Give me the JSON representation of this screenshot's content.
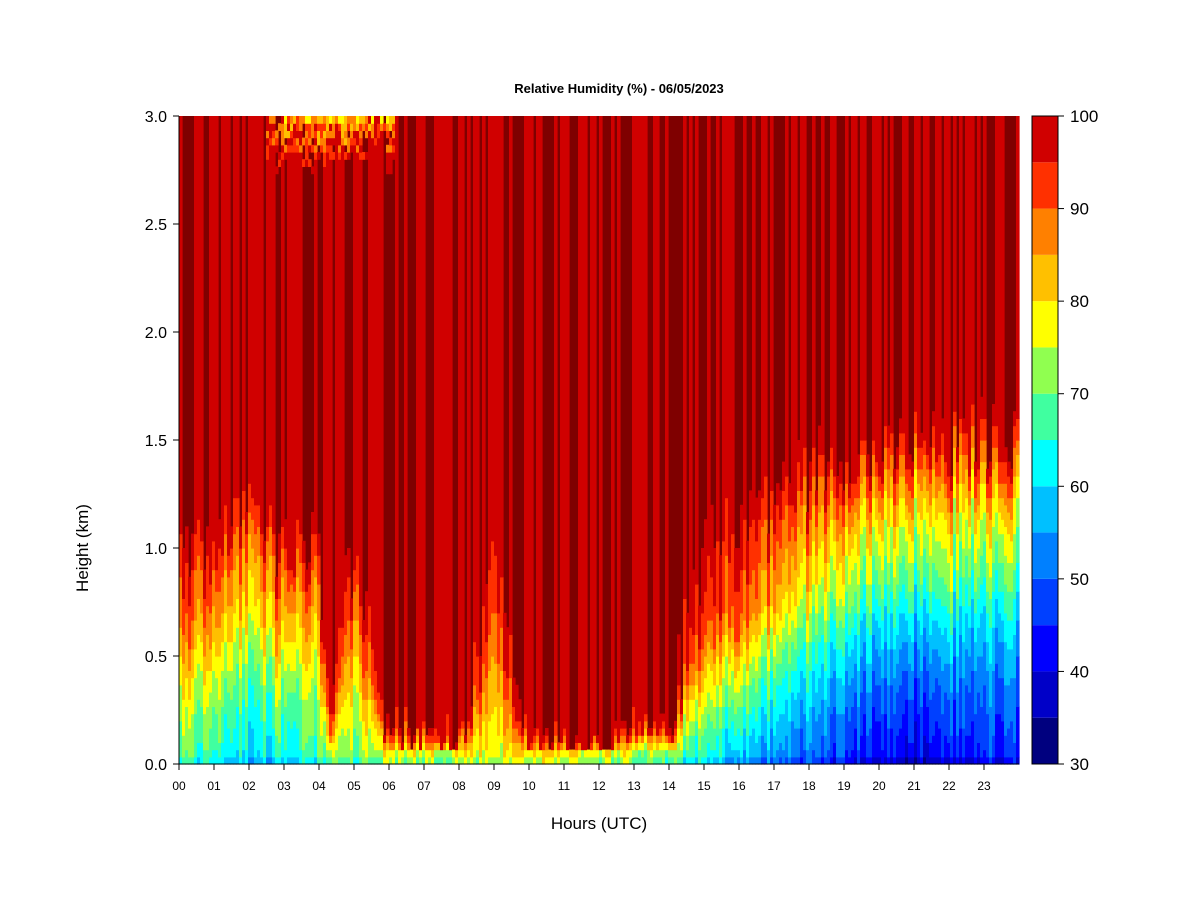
{
  "chart_data": {
    "type": "heatmap",
    "title": "Relative Humidity (%) - 06/05/2023",
    "xlabel": "Hours (UTC)",
    "ylabel": "Height (km)",
    "xlim": [
      0,
      24
    ],
    "ylim": [
      0,
      3
    ],
    "x_ticks": [
      "00",
      "01",
      "02",
      "03",
      "04",
      "05",
      "06",
      "07",
      "08",
      "09",
      "10",
      "11",
      "12",
      "13",
      "14",
      "15",
      "16",
      "17",
      "18",
      "19",
      "20",
      "21",
      "22",
      "23"
    ],
    "y_ticks": [
      "0.0",
      "0.5",
      "1.0",
      "1.5",
      "2.0",
      "2.5",
      "3.0"
    ],
    "y_tick_values": [
      0,
      0.5,
      1.0,
      1.5,
      2.0,
      2.5,
      3.0
    ],
    "colorbar": {
      "levels": [
        30,
        35,
        40,
        45,
        50,
        55,
        60,
        65,
        70,
        75,
        80,
        85,
        90,
        95,
        100
      ],
      "labels": [
        "30",
        "40",
        "50",
        "60",
        "70",
        "80",
        "90",
        "100"
      ],
      "label_values": [
        30,
        40,
        50,
        60,
        70,
        80,
        90,
        100
      ],
      "colors": [
        "#00007f",
        "#0000c8",
        "#0000ff",
        "#0040ff",
        "#0080ff",
        "#00c0ff",
        "#00ffff",
        "#40ffa0",
        "#90ff50",
        "#ffff00",
        "#ffc000",
        "#ff8000",
        "#ff3000",
        "#d00000",
        "#7f0000"
      ]
    },
    "profiles": [
      {
        "hour": 0.0,
        "rh_sfc": 62,
        "boundary_top_km": 1.1,
        "mid_rh": 85
      },
      {
        "hour": 1.0,
        "rh_sfc": 60,
        "boundary_top_km": 1.05,
        "mid_rh": 80
      },
      {
        "hour": 2.0,
        "rh_sfc": 55,
        "boundary_top_km": 1.25,
        "mid_rh": 75
      },
      {
        "hour": 3.0,
        "rh_sfc": 58,
        "boundary_top_km": 1.05,
        "mid_rh": 78
      },
      {
        "hour": 4.0,
        "rh_sfc": 60,
        "boundary_top_km": 1.05,
        "mid_rh": 75
      },
      {
        "hour": 4.3,
        "rh_sfc": 70,
        "boundary_top_km": 0.35,
        "mid_rh": 97
      },
      {
        "hour": 5.0,
        "rh_sfc": 65,
        "boundary_top_km": 1.05,
        "mid_rh": 80
      },
      {
        "hour": 6.0,
        "rh_sfc": 70,
        "boundary_top_km": 0.25,
        "mid_rh": 98
      },
      {
        "hour": 8.0,
        "rh_sfc": 72,
        "boundary_top_km": 0.15,
        "mid_rh": 99
      },
      {
        "hour": 9.0,
        "rh_sfc": 72,
        "boundary_top_km": 1.1,
        "mid_rh": 88
      },
      {
        "hour": 10.0,
        "rh_sfc": 75,
        "boundary_top_km": 0.15,
        "mid_rh": 99
      },
      {
        "hour": 12.0,
        "rh_sfc": 72,
        "boundary_top_km": 0.15,
        "mid_rh": 99
      },
      {
        "hour": 14.0,
        "rh_sfc": 65,
        "boundary_top_km": 0.25,
        "mid_rh": 98
      },
      {
        "hour": 15.0,
        "rh_sfc": 58,
        "boundary_top_km": 1.2,
        "mid_rh": 90
      },
      {
        "hour": 16.0,
        "rh_sfc": 52,
        "boundary_top_km": 1.2,
        "mid_rh": 88
      },
      {
        "hour": 17.0,
        "rh_sfc": 48,
        "boundary_top_km": 1.3,
        "mid_rh": 78
      },
      {
        "hour": 18.0,
        "rh_sfc": 45,
        "boundary_top_km": 1.4,
        "mid_rh": 72
      },
      {
        "hour": 19.0,
        "rh_sfc": 40,
        "boundary_top_km": 1.5,
        "mid_rh": 65
      },
      {
        "hour": 20.0,
        "rh_sfc": 38,
        "boundary_top_km": 1.45,
        "mid_rh": 62
      },
      {
        "hour": 21.0,
        "rh_sfc": 35,
        "boundary_top_km": 1.5,
        "mid_rh": 60
      },
      {
        "hour": 22.0,
        "rh_sfc": 38,
        "boundary_top_km": 1.5,
        "mid_rh": 62
      },
      {
        "hour": 23.0,
        "rh_sfc": 40,
        "boundary_top_km": 1.55,
        "mid_rh": 60
      },
      {
        "hour": 24.0,
        "rh_sfc": 40,
        "boundary_top_km": 1.55,
        "mid_rh": 60
      }
    ],
    "upper_dry_patches": [
      {
        "hour_start": 2.5,
        "hour_end": 6.2,
        "bottom_km": 2.75,
        "min_rh": 75
      }
    ]
  }
}
